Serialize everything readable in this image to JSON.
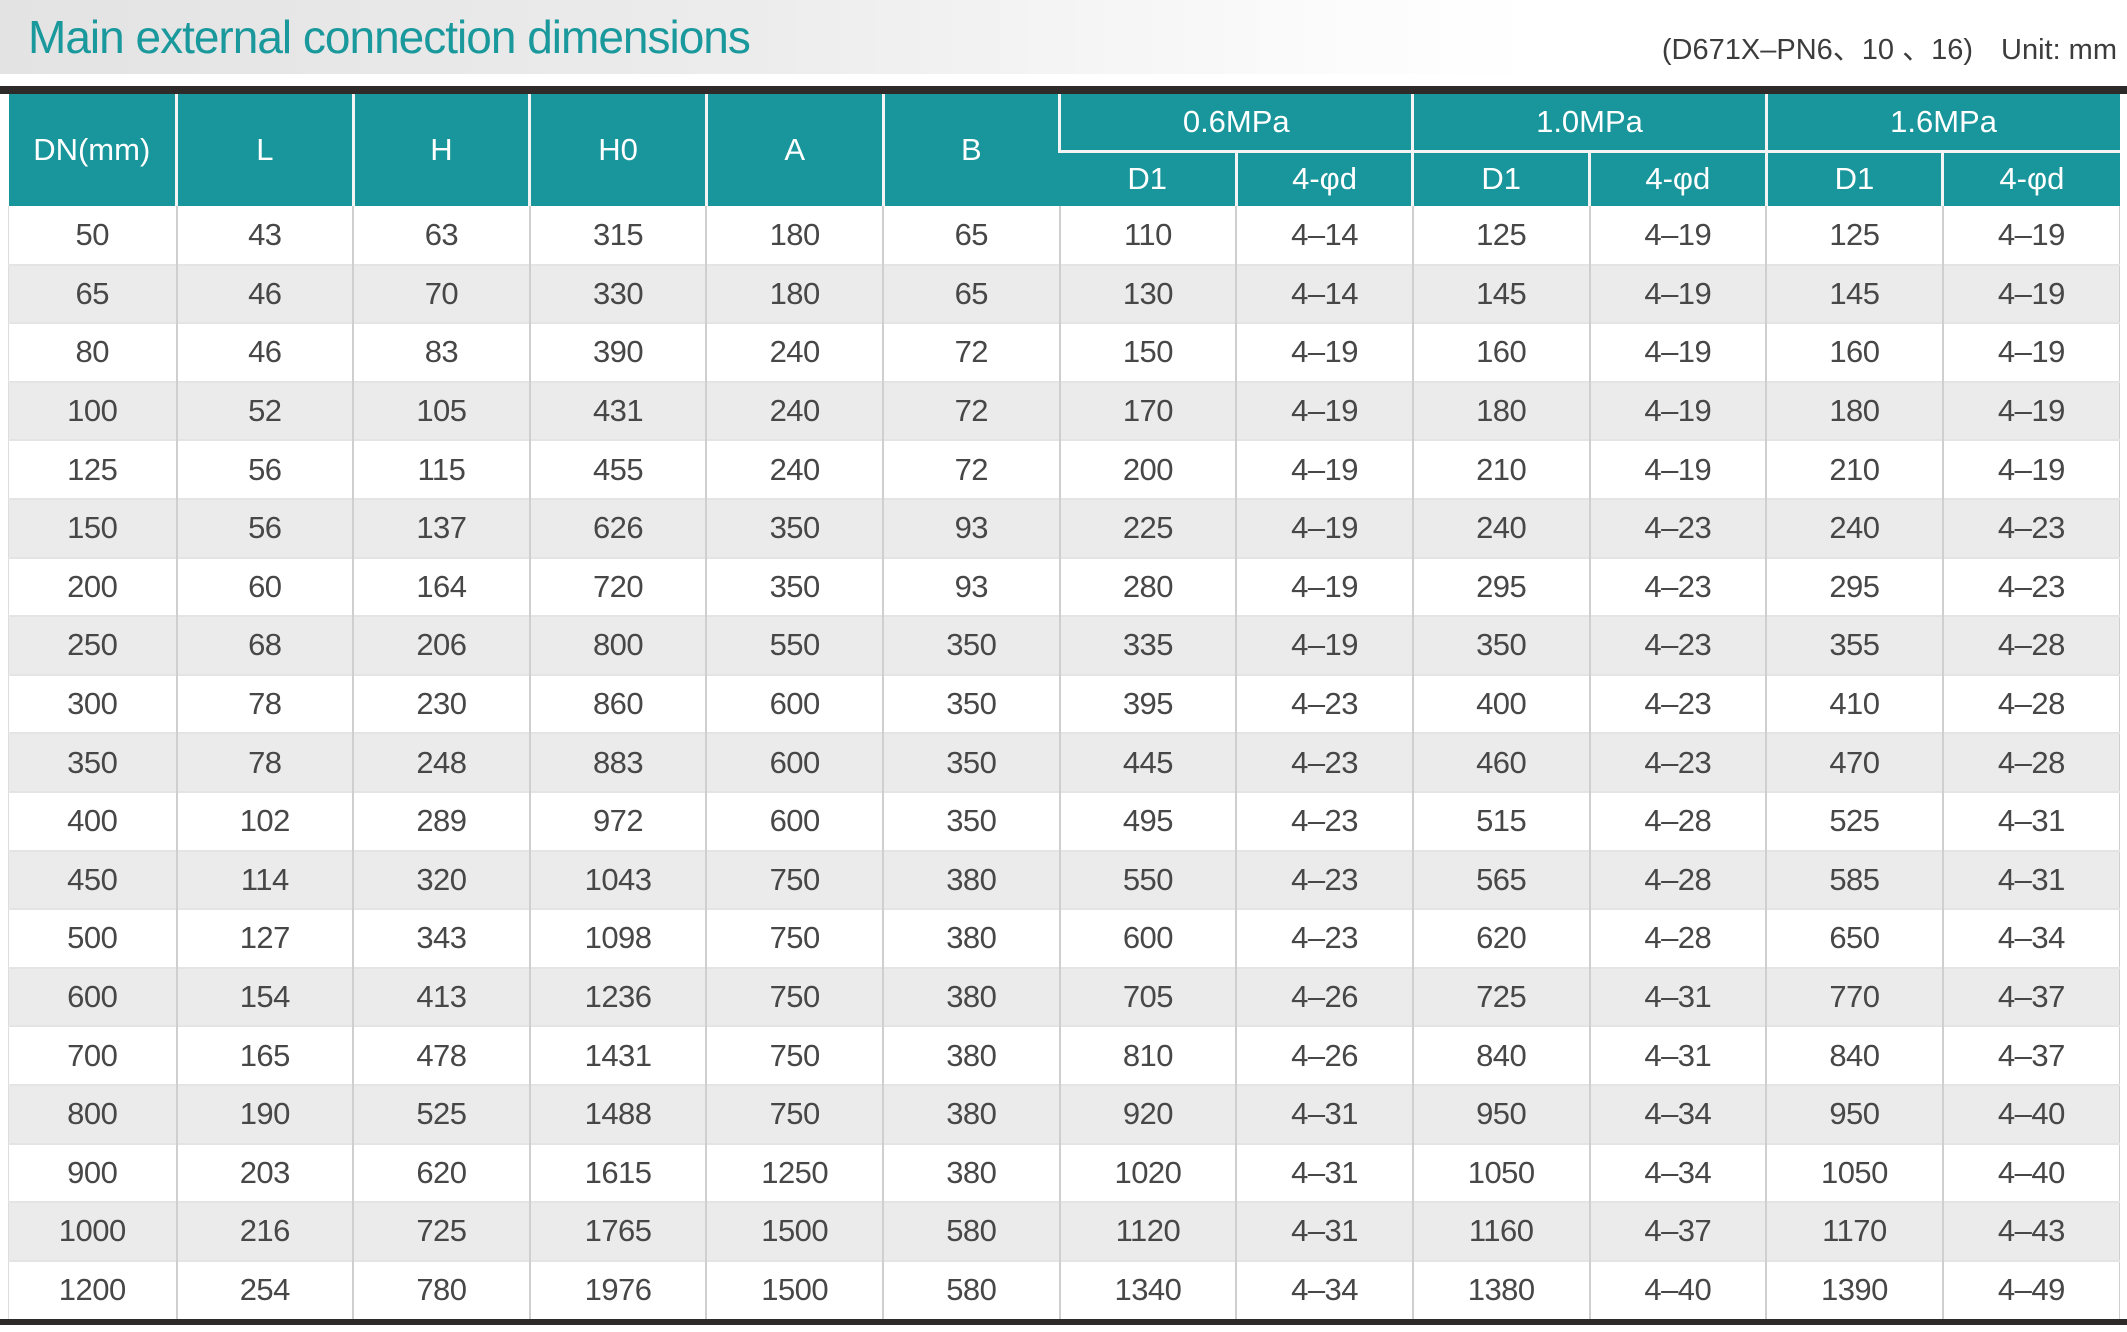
{
  "header": {
    "title": "Main external connection dimensions",
    "model": "(D671X–PN6、10 、16)",
    "unit": "Unit: mm"
  },
  "colors": {
    "accent_teal": "#18969b",
    "title_teal": "#1a999d",
    "dark_border": "#2d2a29",
    "row_stripe": "#ebebeb",
    "body_text": "#474747"
  },
  "table": {
    "columns": [
      "DN(mm)",
      "L",
      "H",
      "H0",
      "A",
      "B"
    ],
    "pressure_groups": [
      {
        "label": "0.6MPa",
        "sub": [
          "D1",
          "4-φd"
        ]
      },
      {
        "label": "1.0MPa",
        "sub": [
          "D1",
          "4-φd"
        ]
      },
      {
        "label": "1.6MPa",
        "sub": [
          "D1",
          "4-φd"
        ]
      }
    ],
    "rows": [
      [
        "50",
        "43",
        "63",
        "315",
        "180",
        "65",
        "110",
        "4–14",
        "125",
        "4–19",
        "125",
        "4–19"
      ],
      [
        "65",
        "46",
        "70",
        "330",
        "180",
        "65",
        "130",
        "4–14",
        "145",
        "4–19",
        "145",
        "4–19"
      ],
      [
        "80",
        "46",
        "83",
        "390",
        "240",
        "72",
        "150",
        "4–19",
        "160",
        "4–19",
        "160",
        "4–19"
      ],
      [
        "100",
        "52",
        "105",
        "431",
        "240",
        "72",
        "170",
        "4–19",
        "180",
        "4–19",
        "180",
        "4–19"
      ],
      [
        "125",
        "56",
        "115",
        "455",
        "240",
        "72",
        "200",
        "4–19",
        "210",
        "4–19",
        "210",
        "4–19"
      ],
      [
        "150",
        "56",
        "137",
        "626",
        "350",
        "93",
        "225",
        "4–19",
        "240",
        "4–23",
        "240",
        "4–23"
      ],
      [
        "200",
        "60",
        "164",
        "720",
        "350",
        "93",
        "280",
        "4–19",
        "295",
        "4–23",
        "295",
        "4–23"
      ],
      [
        "250",
        "68",
        "206",
        "800",
        "550",
        "350",
        "335",
        "4–19",
        "350",
        "4–23",
        "355",
        "4–28"
      ],
      [
        "300",
        "78",
        "230",
        "860",
        "600",
        "350",
        "395",
        "4–23",
        "400",
        "4–23",
        "410",
        "4–28"
      ],
      [
        "350",
        "78",
        "248",
        "883",
        "600",
        "350",
        "445",
        "4–23",
        "460",
        "4–23",
        "470",
        "4–28"
      ],
      [
        "400",
        "102",
        "289",
        "972",
        "600",
        "350",
        "495",
        "4–23",
        "515",
        "4–28",
        "525",
        "4–31"
      ],
      [
        "450",
        "114",
        "320",
        "1043",
        "750",
        "380",
        "550",
        "4–23",
        "565",
        "4–28",
        "585",
        "4–31"
      ],
      [
        "500",
        "127",
        "343",
        "1098",
        "750",
        "380",
        "600",
        "4–23",
        "620",
        "4–28",
        "650",
        "4–34"
      ],
      [
        "600",
        "154",
        "413",
        "1236",
        "750",
        "380",
        "705",
        "4–26",
        "725",
        "4–31",
        "770",
        "4–37"
      ],
      [
        "700",
        "165",
        "478",
        "1431",
        "750",
        "380",
        "810",
        "4–26",
        "840",
        "4–31",
        "840",
        "4–37"
      ],
      [
        "800",
        "190",
        "525",
        "1488",
        "750",
        "380",
        "920",
        "4–31",
        "950",
        "4–34",
        "950",
        "4–40"
      ],
      [
        "900",
        "203",
        "620",
        "1615",
        "1250",
        "380",
        "1020",
        "4–31",
        "1050",
        "4–34",
        "1050",
        "4–40"
      ],
      [
        "1000",
        "216",
        "725",
        "1765",
        "1500",
        "580",
        "1120",
        "4–31",
        "1160",
        "4–37",
        "1170",
        "4–43"
      ],
      [
        "1200",
        "254",
        "780",
        "1976",
        "1500",
        "580",
        "1340",
        "4–34",
        "1380",
        "4–40",
        "1390",
        "4–49"
      ]
    ]
  }
}
